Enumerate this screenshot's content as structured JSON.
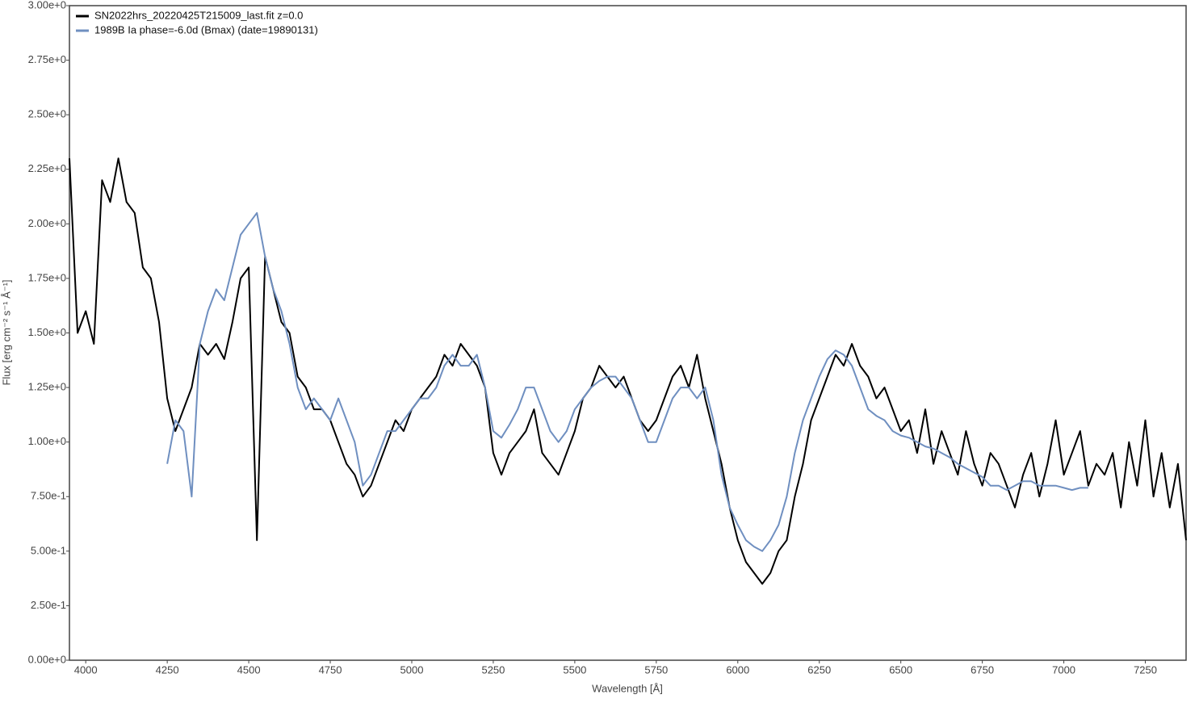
{
  "chart_data": {
    "type": "line",
    "xlabel": "Wavelength [Å]",
    "ylabel": "Flux [erg cm⁻² s⁻¹ Å⁻¹]",
    "xlim": [
      3950,
      7375
    ],
    "ylim": [
      0,
      3
    ],
    "xticks": [
      4000,
      4250,
      4500,
      4750,
      5000,
      5250,
      5500,
      5750,
      6000,
      6250,
      6500,
      6750,
      7000,
      7250
    ],
    "yticks": [
      {
        "value": 0,
        "label": "0.00e+0"
      },
      {
        "value": 0.25,
        "label": "2.50e-1"
      },
      {
        "value": 0.5,
        "label": "5.00e-1"
      },
      {
        "value": 0.75,
        "label": "7.50e-1"
      },
      {
        "value": 1,
        "label": "1.00e+0"
      },
      {
        "value": 1.25,
        "label": "1.25e+0"
      },
      {
        "value": 1.5,
        "label": "1.50e+0"
      },
      {
        "value": 1.75,
        "label": "1.75e+0"
      },
      {
        "value": 2,
        "label": "2.00e+0"
      },
      {
        "value": 2.25,
        "label": "2.25e+0"
      },
      {
        "value": 2.5,
        "label": "2.50e+0"
      },
      {
        "value": 2.75,
        "label": "2.75e+0"
      },
      {
        "value": 3,
        "label": "3.00e+0"
      }
    ],
    "legend": "upper left",
    "x": [
      3950,
      3975,
      4000,
      4025,
      4050,
      4075,
      4100,
      4125,
      4150,
      4175,
      4200,
      4225,
      4250,
      4275,
      4300,
      4325,
      4350,
      4375,
      4400,
      4425,
      4450,
      4475,
      4500,
      4525,
      4550,
      4575,
      4600,
      4625,
      4650,
      4675,
      4700,
      4725,
      4750,
      4775,
      4800,
      4825,
      4850,
      4875,
      4900,
      4925,
      4950,
      4975,
      5000,
      5025,
      5050,
      5075,
      5100,
      5125,
      5150,
      5175,
      5200,
      5225,
      5250,
      5275,
      5300,
      5325,
      5350,
      5375,
      5400,
      5425,
      5450,
      5475,
      5500,
      5525,
      5550,
      5575,
      5600,
      5625,
      5650,
      5675,
      5700,
      5725,
      5750,
      5775,
      5800,
      5825,
      5850,
      5875,
      5900,
      5925,
      5950,
      5975,
      6000,
      6025,
      6050,
      6075,
      6100,
      6125,
      6150,
      6175,
      6200,
      6225,
      6250,
      6275,
      6300,
      6325,
      6350,
      6375,
      6400,
      6425,
      6450,
      6475,
      6500,
      6525,
      6550,
      6575,
      6600,
      6625,
      6650,
      6675,
      6700,
      6725,
      6750,
      6775,
      6800,
      6825,
      6850,
      6875,
      6900,
      6925,
      6950,
      6975,
      7000,
      7025,
      7050,
      7075,
      7100,
      7125,
      7150,
      7175,
      7200,
      7225,
      7250,
      7275,
      7300,
      7325,
      7350,
      7375
    ],
    "series": [
      {
        "name": "SN2022hrs_20220425T215009_last.fit  z=0.0",
        "color": "#000000",
        "values": [
          2.3,
          1.5,
          1.6,
          1.45,
          2.2,
          2.1,
          2.3,
          2.1,
          2.05,
          1.8,
          1.75,
          1.55,
          1.2,
          1.05,
          1.15,
          1.25,
          1.45,
          1.4,
          1.45,
          1.38,
          1.55,
          1.75,
          1.8,
          0.55,
          1.85,
          1.7,
          1.55,
          1.5,
          1.3,
          1.25,
          1.15,
          1.15,
          1.1,
          1.0,
          0.9,
          0.85,
          0.75,
          0.8,
          0.9,
          1.0,
          1.1,
          1.05,
          1.15,
          1.2,
          1.25,
          1.3,
          1.4,
          1.35,
          1.45,
          1.4,
          1.35,
          1.25,
          0.95,
          0.85,
          0.95,
          1.0,
          1.05,
          1.15,
          0.95,
          0.9,
          0.85,
          0.95,
          1.05,
          1.2,
          1.25,
          1.35,
          1.3,
          1.25,
          1.3,
          1.2,
          1.1,
          1.05,
          1.1,
          1.2,
          1.3,
          1.35,
          1.25,
          1.4,
          1.2,
          1.05,
          0.9,
          0.7,
          0.55,
          0.45,
          0.4,
          0.35,
          0.4,
          0.5,
          0.55,
          0.75,
          0.9,
          1.1,
          1.2,
          1.3,
          1.4,
          1.35,
          1.45,
          1.35,
          1.3,
          1.2,
          1.25,
          1.15,
          1.05,
          1.1,
          0.95,
          1.15,
          0.9,
          1.05,
          0.95,
          0.85,
          1.05,
          0.9,
          0.8,
          0.95,
          0.9,
          0.8,
          0.7,
          0.85,
          0.95,
          0.75,
          0.9,
          1.1,
          0.85,
          0.95,
          1.05,
          0.8,
          0.9,
          0.85,
          0.95,
          0.7,
          1.0,
          0.8,
          1.1,
          0.75,
          0.95,
          0.7,
          0.9,
          0.55
        ]
      },
      {
        "name": "1989B  Ia  phase=-6.0d (Bmax)  (date=19890131)",
        "color": "#6f8fc0",
        "values": [
          null,
          null,
          null,
          null,
          null,
          null,
          null,
          null,
          null,
          null,
          null,
          null,
          0.9,
          1.1,
          1.05,
          0.75,
          1.45,
          1.6,
          1.7,
          1.65,
          1.8,
          1.95,
          2.0,
          2.05,
          1.85,
          1.7,
          1.6,
          1.45,
          1.25,
          1.15,
          1.2,
          1.15,
          1.1,
          1.2,
          1.1,
          1.0,
          0.8,
          0.85,
          0.95,
          1.05,
          1.05,
          1.1,
          1.15,
          1.2,
          1.2,
          1.25,
          1.35,
          1.4,
          1.35,
          1.35,
          1.4,
          1.25,
          1.05,
          1.02,
          1.08,
          1.15,
          1.25,
          1.25,
          1.15,
          1.05,
          1.0,
          1.05,
          1.15,
          1.2,
          1.25,
          1.28,
          1.3,
          1.3,
          1.25,
          1.2,
          1.1,
          1.0,
          1.0,
          1.1,
          1.2,
          1.25,
          1.25,
          1.2,
          1.25,
          1.1,
          0.85,
          0.7,
          0.62,
          0.55,
          0.52,
          0.5,
          0.55,
          0.62,
          0.75,
          0.95,
          1.1,
          1.2,
          1.3,
          1.38,
          1.42,
          1.4,
          1.35,
          1.25,
          1.15,
          1.12,
          1.1,
          1.05,
          1.03,
          1.02,
          1.0,
          0.98,
          0.97,
          0.95,
          0.93,
          0.9,
          0.88,
          0.86,
          0.84,
          0.8,
          0.8,
          0.78,
          0.8,
          0.82,
          0.82,
          0.8,
          0.8,
          0.8,
          0.79,
          0.78,
          0.79,
          0.79,
          null,
          null,
          null,
          null,
          null,
          null,
          null,
          null,
          null,
          null,
          null,
          null
        ]
      }
    ]
  }
}
